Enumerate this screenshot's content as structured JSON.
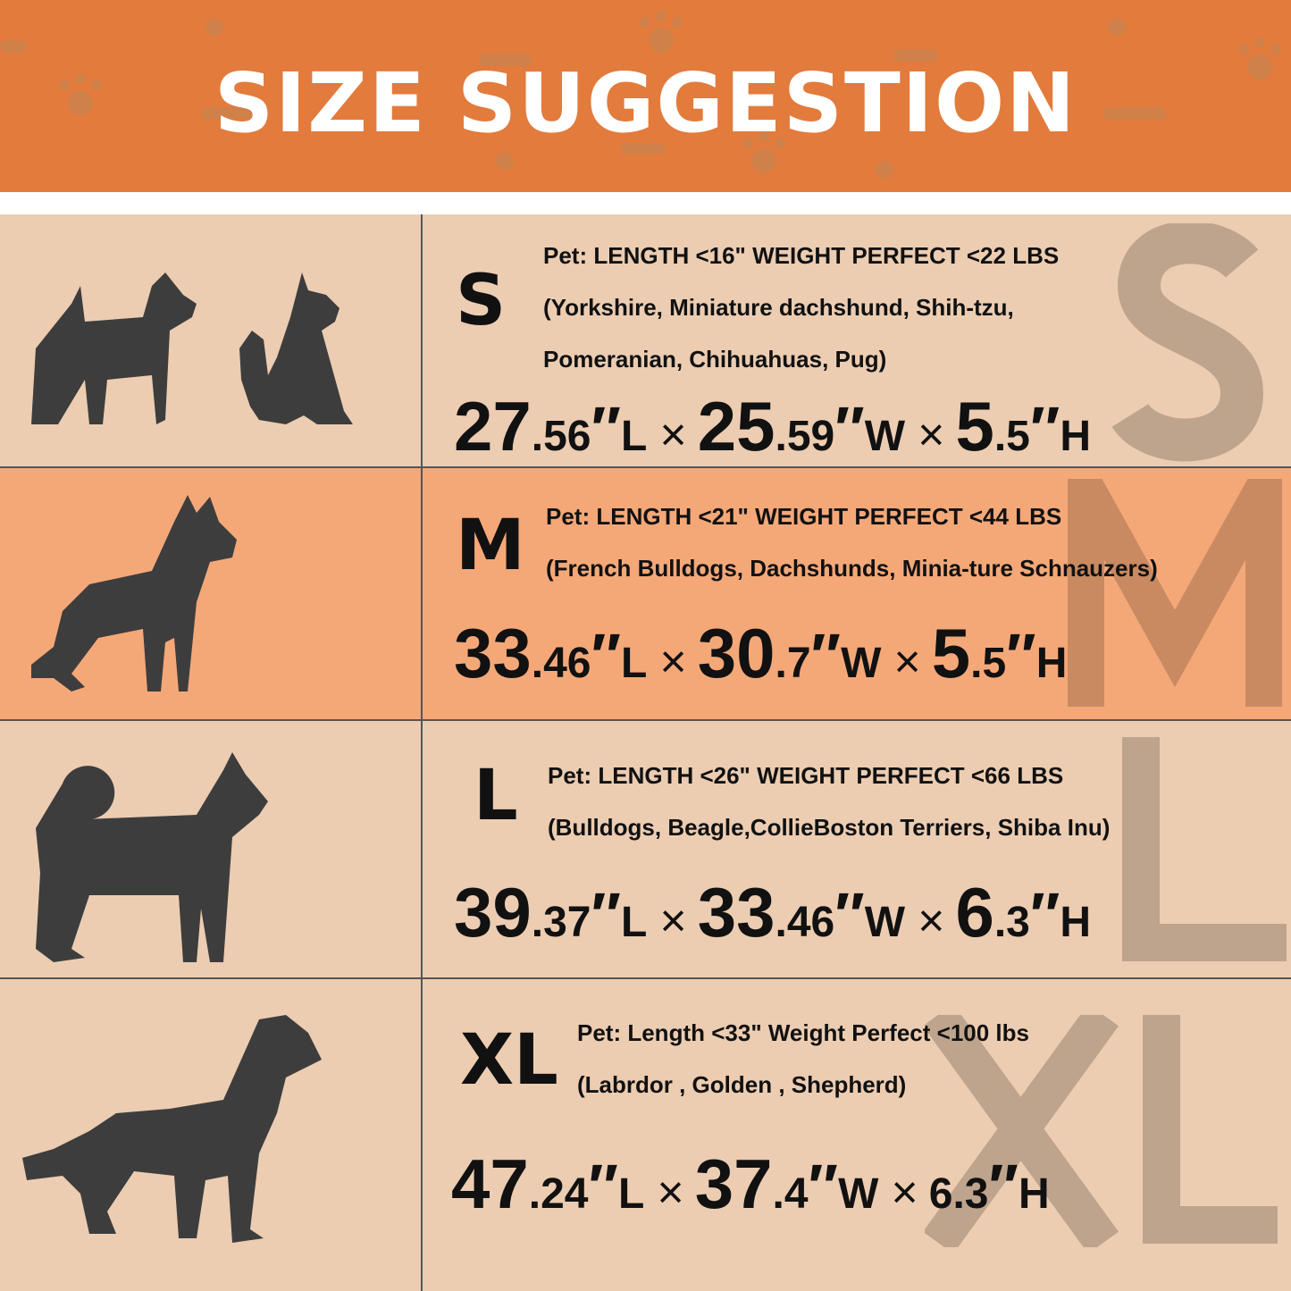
{
  "header": {
    "title": "SIZE SUGGESTION",
    "background": "#e27b3c"
  },
  "colors": {
    "row": "#eccdb2",
    "row_highlight": "#f4a878",
    "silhouette": "#3d3d3d"
  },
  "rows": [
    {
      "size": "S",
      "icons": [
        "terrier-icon",
        "cat-icon"
      ],
      "lines": [
        "Pet:  LENGTH <16\"  WEIGHT PERFECT <22 LBS",
        "(Yorkshire, Miniature dachshund, Shih-tzu,",
        "Pomeranian, Chihuahuas, Pug)"
      ],
      "dims": [
        {
          "major": "27",
          "minor": ".56",
          "unit": "L"
        },
        {
          "major": "25",
          "minor": ".59",
          "unit": "W"
        },
        {
          "major": "5",
          "minor": ".5",
          "unit": "H"
        }
      ]
    },
    {
      "size": "M",
      "icons": [
        "bulldog-icon"
      ],
      "lines": [
        "Pet:  LENGTH <21\"  WEIGHT PERFECT <44 LBS",
        "(French Bulldogs, Dachshunds, Minia-ture Schnauzers)"
      ],
      "dims": [
        {
          "major": "33",
          "minor": ".46",
          "unit": "L"
        },
        {
          "major": "30",
          "minor": ".7",
          "unit": "W"
        },
        {
          "major": "5",
          "minor": ".5",
          "unit": "H"
        }
      ]
    },
    {
      "size": "L",
      "icons": [
        "shiba-icon"
      ],
      "lines": [
        "Pet:  LENGTH <26\" WEIGHT PERFECT <66 LBS",
        "(Bulldogs, Beagle,CollieBoston Terriers, Shiba Inu)"
      ],
      "dims": [
        {
          "major": "39",
          "minor": ".37",
          "unit": "L"
        },
        {
          "major": "33",
          "minor": ".46",
          "unit": "W"
        },
        {
          "major": "6",
          "minor": ".3",
          "unit": "H"
        }
      ]
    },
    {
      "size": "XL",
      "icons": [
        "golden-retriever-icon"
      ],
      "lines": [
        "Pet:  Length <33\"  Weight Perfect <100 lbs",
        "(Labrdor , Golden ,  Shepherd)"
      ],
      "dims": [
        {
          "major": "47",
          "minor": ".24",
          "unit": "L"
        },
        {
          "major": "37",
          "minor": ".4",
          "unit": "W"
        },
        {
          "major": "6.3",
          "minor": "",
          "unit": "H"
        }
      ]
    }
  ],
  "symbols": {
    "quote": "″",
    "times": "×"
  }
}
